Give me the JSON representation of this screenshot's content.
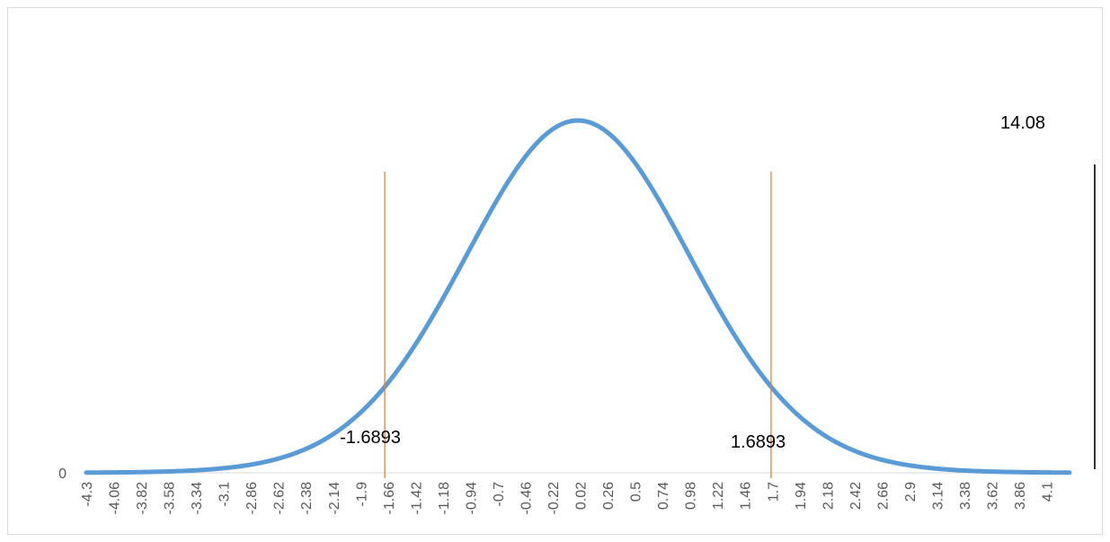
{
  "chart_data": {
    "type": "line",
    "title": "",
    "xlabel": "",
    "ylabel": "",
    "x_tick_labels": [
      "-4.3",
      "-4.06",
      "-3.82",
      "-3.58",
      "-3.34",
      "-3.1",
      "-2.86",
      "-2.62",
      "-2.38",
      "-2.14",
      "-1.9",
      "-1.66",
      "-1.42",
      "-1.18",
      "-0.94",
      "-0.7",
      "-0.46",
      "-0.22",
      "0.02",
      "0.26",
      "0.5",
      "0.74",
      "0.98",
      "1.22",
      "1.46",
      "1.7",
      "1.94",
      "2.18",
      "2.42",
      "2.66",
      "2.9",
      "3.14",
      "3.38",
      "3.62",
      "3.86",
      "4.1"
    ],
    "x_range": [
      -4.3,
      4.3
    ],
    "y_tick_labels": [
      "0"
    ],
    "y_range": [
      0,
      0.4
    ],
    "grid": false,
    "series": [
      {
        "distribution": "t",
        "degrees_of_freedom": 33,
        "color": "#5b9bd5",
        "x_step": 0.02
      }
    ],
    "critical_lines": [
      {
        "x": -1.6893,
        "label": "-1.6893",
        "color": "#ed7d31"
      },
      {
        "x": 1.6893,
        "label": "1.6893",
        "color": "#ed7d31"
      }
    ],
    "statistic": {
      "value": 14.08,
      "label": "14.08",
      "color": "#000000"
    }
  }
}
